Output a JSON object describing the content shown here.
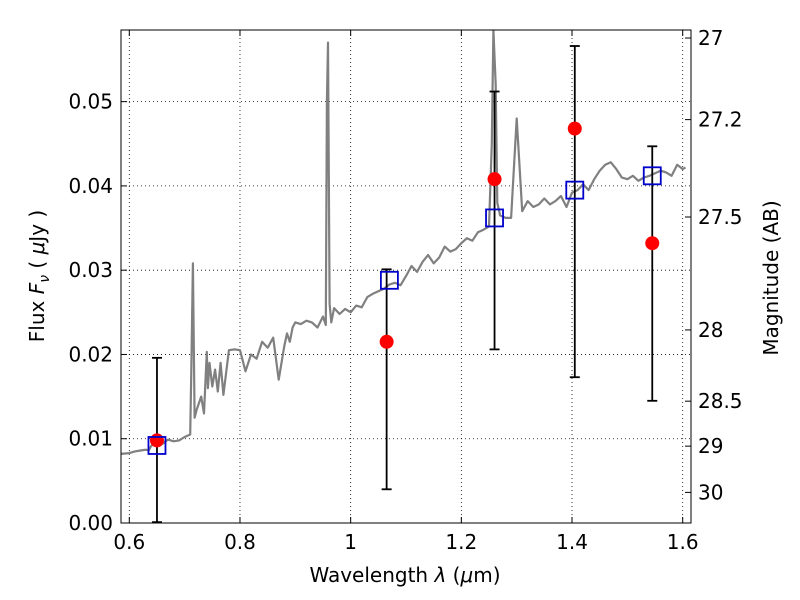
{
  "chart_data": {
    "type": "scatter",
    "title": "",
    "xlabel": "Wavelength  λ (μm)",
    "ylabel": "Flux  F_ν  ( μJy )",
    "ylabel_parts": {
      "pre": "Flux  ",
      "sym": "F",
      "sub": "ν",
      "post": "  ( ",
      "mu": "μ",
      "unit": "Jy )"
    },
    "xlabel_parts": {
      "pre": "Wavelength  ",
      "sym": "λ",
      "post": " (",
      "mu": "μ",
      "unit": "m)"
    },
    "y2label": "Magnitude (AB)",
    "xlim": [
      0.585,
      1.615
    ],
    "ylim": [
      0.0,
      0.0585
    ],
    "grid": true,
    "xticks": [
      {
        "value": 0.6,
        "label": "0.6"
      },
      {
        "value": 0.8,
        "label": "0.8"
      },
      {
        "value": 1.0,
        "label": "1"
      },
      {
        "value": 1.2,
        "label": "1.2"
      },
      {
        "value": 1.4,
        "label": "1.4"
      },
      {
        "value": 1.6,
        "label": "1.6"
      }
    ],
    "yticks": [
      {
        "value": 0.0,
        "label": "0.00"
      },
      {
        "value": 0.01,
        "label": "0.01"
      },
      {
        "value": 0.02,
        "label": "0.02"
      },
      {
        "value": 0.03,
        "label": "0.03"
      },
      {
        "value": 0.04,
        "label": "0.04"
      },
      {
        "value": 0.05,
        "label": "0.05"
      }
    ],
    "y2ticks": [
      {
        "value": 27.0,
        "label": "27"
      },
      {
        "value": 27.2,
        "label": "27.2"
      },
      {
        "value": 27.5,
        "label": "27.5"
      },
      {
        "value": 28.0,
        "label": "28"
      },
      {
        "value": 28.5,
        "label": "28.5"
      },
      {
        "value": 29.0,
        "label": "29"
      },
      {
        "value": 30.0,
        "label": "30"
      }
    ],
    "series": [
      {
        "kind": "line",
        "color": "#808080",
        "x": [
          0.585,
          0.6,
          0.61,
          0.62,
          0.63,
          0.635,
          0.64,
          0.65,
          0.655,
          0.66,
          0.67,
          0.68,
          0.69,
          0.7,
          0.71,
          0.712,
          0.715,
          0.718,
          0.722,
          0.73,
          0.735,
          0.74,
          0.742,
          0.745,
          0.75,
          0.755,
          0.76,
          0.765,
          0.77,
          0.78,
          0.79,
          0.8,
          0.81,
          0.82,
          0.83,
          0.84,
          0.85,
          0.86,
          0.87,
          0.88,
          0.885,
          0.89,
          0.895,
          0.9,
          0.91,
          0.92,
          0.93,
          0.94,
          0.95,
          0.955,
          0.957,
          0.959,
          0.962,
          0.965,
          0.97,
          0.98,
          0.99,
          1.0,
          1.01,
          1.02,
          1.03,
          1.04,
          1.05,
          1.06,
          1.07,
          1.08,
          1.09,
          1.1,
          1.11,
          1.12,
          1.13,
          1.14,
          1.15,
          1.16,
          1.17,
          1.18,
          1.19,
          1.2,
          1.21,
          1.22,
          1.23,
          1.24,
          1.25,
          1.255,
          1.258,
          1.262,
          1.265,
          1.27,
          1.28,
          1.29,
          1.3,
          1.31,
          1.32,
          1.33,
          1.34,
          1.35,
          1.36,
          1.37,
          1.38,
          1.39,
          1.4,
          1.41,
          1.42,
          1.43,
          1.44,
          1.45,
          1.46,
          1.47,
          1.48,
          1.49,
          1.5,
          1.51,
          1.52,
          1.53,
          1.54,
          1.55,
          1.56,
          1.57,
          1.58,
          1.59,
          1.6,
          1.605
        ],
        "y": [
          0.0082,
          0.0083,
          0.0085,
          0.0086,
          0.0087,
          0.0086,
          0.0092,
          0.0095,
          0.0097,
          0.0094,
          0.0099,
          0.0097,
          0.0098,
          0.0102,
          0.0105,
          0.018,
          0.0308,
          0.0125,
          0.0135,
          0.015,
          0.013,
          0.0203,
          0.016,
          0.019,
          0.0162,
          0.0182,
          0.0156,
          0.019,
          0.0152,
          0.0205,
          0.0206,
          0.0205,
          0.018,
          0.02,
          0.0195,
          0.0215,
          0.0208,
          0.022,
          0.017,
          0.021,
          0.0225,
          0.0215,
          0.0232,
          0.0238,
          0.0236,
          0.024,
          0.0238,
          0.0232,
          0.0245,
          0.0235,
          0.05,
          0.057,
          0.026,
          0.0238,
          0.0255,
          0.0248,
          0.0254,
          0.025,
          0.0258,
          0.0256,
          0.0268,
          0.0272,
          0.0275,
          0.0278,
          0.0283,
          0.0285,
          0.0282,
          0.0293,
          0.0305,
          0.0298,
          0.031,
          0.0318,
          0.0308,
          0.0315,
          0.0328,
          0.0322,
          0.0325,
          0.0332,
          0.0338,
          0.0335,
          0.0345,
          0.0348,
          0.0352,
          0.045,
          0.0585,
          0.052,
          0.038,
          0.0365,
          0.0362,
          0.0362,
          0.048,
          0.037,
          0.0382,
          0.0375,
          0.0378,
          0.0385,
          0.0378,
          0.0382,
          0.0388,
          0.0375,
          0.0392,
          0.0395,
          0.0402,
          0.0395,
          0.0408,
          0.0418,
          0.0425,
          0.0428,
          0.042,
          0.041,
          0.0408,
          0.0412,
          0.0406,
          0.041,
          0.0412,
          0.0415,
          0.0418,
          0.0416,
          0.0412,
          0.0425,
          0.042,
          0.0422
        ]
      },
      {
        "kind": "points",
        "name": "",
        "color": "#ff0000",
        "marker": "circle",
        "x": [
          0.65,
          1.065,
          1.26,
          1.405,
          1.545
        ],
        "y": [
          0.0098,
          0.0215,
          0.0408,
          0.0468,
          0.0332
        ],
        "yerr": [
          [
            0.0097,
            0.0098
          ],
          [
            0.0175,
            0.0086
          ],
          [
            0.0202,
            0.0104
          ],
          [
            0.0295,
            0.0098
          ],
          [
            0.0187,
            0.0115
          ]
        ]
      },
      {
        "kind": "points",
        "name": "",
        "color": "#0000cc",
        "marker": "square-open",
        "x": [
          0.65,
          1.07,
          1.26,
          1.405,
          1.545
        ],
        "y": [
          0.0092,
          0.0288,
          0.0362,
          0.0395,
          0.0412
        ]
      }
    ]
  }
}
